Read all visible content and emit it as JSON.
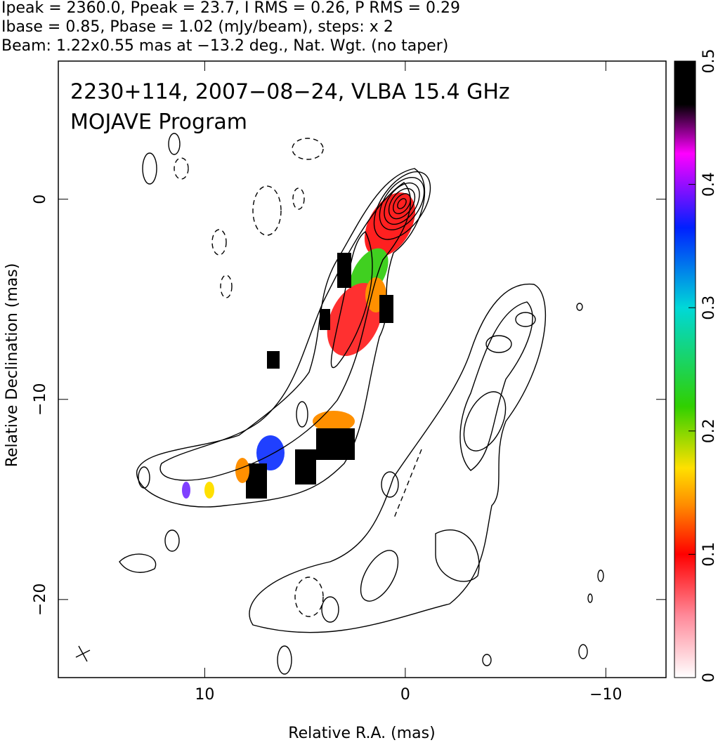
{
  "chart_data": {
    "type": "contour",
    "title_lines": [
      "Ipeak = 2360.0, Ppeak = 23.7, I RMS = 0.26, P RMS = 0.29",
      "Ibase = 0.85, Pbase = 1.02 (mJy/beam), steps: x 2",
      "Beam: 1.22x0.55 mas at −13.2 deg., Nat. Wgt. (no taper)"
    ],
    "annotations": [
      "2230+114, 2007−08−24, VLBA 15.4 GHz",
      "MOJAVE Program"
    ],
    "xlabel": "Relative R.A. (mas)",
    "ylabel": "Relative Declination (mas)",
    "xlim": [
      17.3,
      -13.0
    ],
    "ylim": [
      -23.9,
      6.9
    ],
    "xticks": [
      10,
      0,
      {
        "value": -10,
        "label": "−10"
      }
    ],
    "yticks": [
      0,
      {
        "value": -10,
        "label": "−10"
      },
      {
        "value": -20,
        "label": "−20"
      }
    ],
    "colorbar_lim": [
      0,
      0.5
    ],
    "colorbar_ticks": [
      0,
      0.1,
      0.2,
      0.3,
      0.4,
      0.5
    ]
  }
}
